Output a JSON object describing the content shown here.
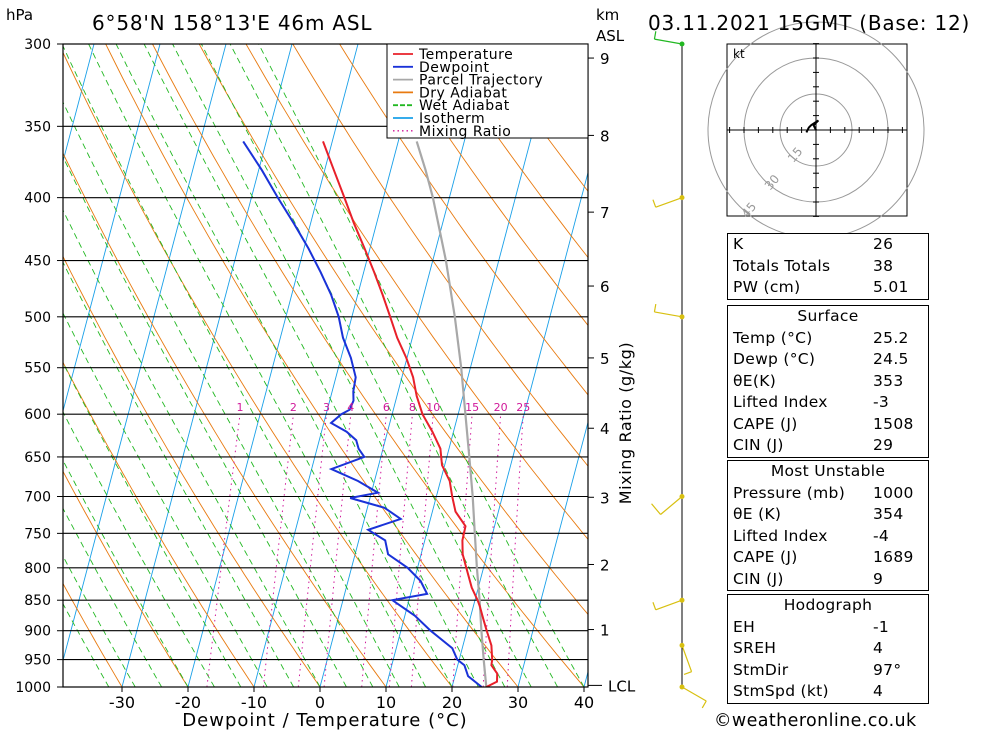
{
  "header": {
    "location": "6°58'N  158°13'E  46m  ASL",
    "date": "03.11.2021  15GMT  (Base: 12)",
    "pressure_unit": "hPa",
    "km_unit": "km",
    "asl_label": "ASL"
  },
  "chart_data": {
    "type": "skew-t log-p",
    "xlabel": "Dewpoint / Temperature (°C)",
    "ylabel_right": "Mixing Ratio (g/kg)",
    "pressure_levels": [
      300,
      350,
      400,
      450,
      500,
      550,
      600,
      650,
      700,
      750,
      800,
      850,
      900,
      950,
      1000
    ],
    "temperature_ticks": [
      -30,
      -20,
      -10,
      0,
      10,
      20,
      30,
      40
    ],
    "xlim": [
      -40,
      40
    ],
    "ylim_hpa": [
      1000,
      300
    ],
    "km_ticks": [
      {
        "km": 1,
        "p": 898
      },
      {
        "km": 2,
        "p": 795
      },
      {
        "km": 3,
        "p": 701
      },
      {
        "km": 4,
        "p": 616
      },
      {
        "km": 5,
        "p": 540
      },
      {
        "km": 6,
        "p": 472
      },
      {
        "km": 7,
        "p": 411
      },
      {
        "km": 8,
        "p": 356
      },
      {
        "km": 9,
        "p": 308
      }
    ],
    "lcl": {
      "label": "LCL",
      "p": 997
    },
    "mixing_ratio_labels": [
      "1",
      "2",
      "3",
      "4",
      "6",
      "8",
      "10",
      "15",
      "20",
      "25"
    ],
    "mixing_ratio_values": [
      1,
      2,
      3,
      4,
      6,
      8,
      10,
      15,
      20,
      25
    ],
    "legend": [
      {
        "name": "Temperature",
        "color": "#e8202a"
      },
      {
        "name": "Dewpoint",
        "color": "#1a32d8"
      },
      {
        "name": "Parcel Trajectory",
        "color": "#a8a8a8"
      },
      {
        "name": "Dry Adiabat",
        "color": "#e87a10"
      },
      {
        "name": "Wet Adiabat",
        "color": "#22b822"
      },
      {
        "name": "Isotherm",
        "color": "#1aa0e8"
      },
      {
        "name": "Mixing Ratio",
        "color": "#d0189a"
      }
    ],
    "series": [
      {
        "name": "Temperature",
        "p": [
          1000,
          990,
          975,
          960,
          950,
          925,
          900,
          880,
          860,
          850,
          830,
          800,
          780,
          760,
          740,
          720,
          700,
          680,
          660,
          640,
          620,
          600,
          580,
          560,
          540,
          520,
          500,
          480,
          460,
          440,
          420,
          400,
          380,
          360
        ],
        "t": [
          25.2,
          26.6,
          26.3,
          25.1,
          25.0,
          24.3,
          23.0,
          22.0,
          21.0,
          20.4,
          19.0,
          17.4,
          16.3,
          15.7,
          15.6,
          13.5,
          12.4,
          11.4,
          9.6,
          8.7,
          6.8,
          4.6,
          3.0,
          1.7,
          -0.1,
          -2.3,
          -4.2,
          -6.2,
          -8.4,
          -10.8,
          -13.4,
          -15.9,
          -18.6,
          -21.4
        ]
      },
      {
        "name": "Dewpoint",
        "p": [
          1000,
          980,
          960,
          950,
          930,
          900,
          875,
          850,
          840,
          820,
          800,
          780,
          760,
          745,
          730,
          715,
          702,
          695,
          680,
          665,
          650,
          640,
          630,
          620,
          610,
          600,
          595,
          585,
          575,
          560,
          540,
          520,
          500,
          480,
          460,
          440,
          420,
          400,
          380,
          360
        ],
        "t": [
          24.5,
          22.0,
          21.0,
          19.7,
          18.5,
          14.5,
          11.5,
          7.5,
          12.5,
          11.0,
          8.5,
          5.0,
          4.0,
          1.0,
          5.5,
          2.6,
          -3.0,
          1.0,
          -2.5,
          -7.0,
          -2.5,
          -3.7,
          -4.4,
          -6.2,
          -8.9,
          -7.7,
          -6.6,
          -6.4,
          -6.8,
          -7.0,
          -8.5,
          -10.5,
          -12.0,
          -14.0,
          -16.5,
          -19.3,
          -22.5,
          -26.0,
          -29.5,
          -33.5
        ]
      },
      {
        "name": "Parcel Trajectory",
        "p": [
          1000,
          950,
          900,
          850,
          800,
          750,
          700,
          650,
          600,
          550,
          500,
          450,
          400,
          380,
          360
        ],
        "t": [
          25.2,
          23.7,
          22.2,
          20.7,
          19.0,
          17.3,
          15.5,
          13.4,
          11.1,
          8.6,
          5.6,
          2.0,
          -2.5,
          -4.7,
          -7.2
        ]
      }
    ],
    "wind_barbs": [
      {
        "p": 1000,
        "dir": 120,
        "kt": 8
      },
      {
        "p": 925,
        "dir": 160,
        "kt": 5
      },
      {
        "p": 850,
        "dir": 250,
        "kt": 5
      },
      {
        "p": 700,
        "dir": 230,
        "kt": 10
      },
      {
        "p": 500,
        "dir": 280,
        "kt": 5
      },
      {
        "p": 400,
        "dir": 250,
        "kt": 5
      },
      {
        "p": 300,
        "dir": 280,
        "kt": 5
      }
    ]
  },
  "hodograph": {
    "unit_label": "kt",
    "ring_labels": [
      "15",
      "30",
      "45"
    ],
    "trace_kt": [
      [
        0,
        0
      ],
      [
        -1,
        2
      ],
      [
        0,
        3
      ],
      [
        1,
        4
      ],
      [
        -2,
        2
      ],
      [
        -3,
        1
      ],
      [
        -4,
        -1
      ]
    ]
  },
  "indices": {
    "general": [
      {
        "label": "K",
        "value": "26"
      },
      {
        "label": "Totals Totals",
        "value": "38"
      },
      {
        "label": "PW (cm)",
        "value": "5.01"
      }
    ],
    "surface": {
      "title": "Surface",
      "rows": [
        {
          "label": "Temp (°C)",
          "value": "25.2"
        },
        {
          "label": "Dewp (°C)",
          "value": "24.5"
        },
        {
          "label": "θE(K)",
          "value": "353"
        },
        {
          "label": "Lifted Index",
          "value": "-3"
        },
        {
          "label": "CAPE (J)",
          "value": "1508"
        },
        {
          "label": "CIN (J)",
          "value": "29"
        }
      ]
    },
    "most_unstable": {
      "title": "Most Unstable",
      "rows": [
        {
          "label": "Pressure (mb)",
          "value": "1000"
        },
        {
          "label": "θE (K)",
          "value": "354"
        },
        {
          "label": "Lifted Index",
          "value": "-4"
        },
        {
          "label": "CAPE (J)",
          "value": "1689"
        },
        {
          "label": "CIN (J)",
          "value": "9"
        }
      ]
    },
    "hodograph": {
      "title": "Hodograph",
      "rows": [
        {
          "label": "EH",
          "value": "-1"
        },
        {
          "label": "SREH",
          "value": "4"
        },
        {
          "label": "StmDir",
          "value": "97°"
        },
        {
          "label": "StmSpd (kt)",
          "value": "4"
        }
      ]
    }
  },
  "footer": {
    "copyright": "©weatheronline.co.uk"
  },
  "colors": {
    "temperature": "#e8202a",
    "dewpoint": "#1a32d8",
    "parcel": "#a8a8a8",
    "dry_adiabat": "#e87a10",
    "wet_adiabat": "#22b822",
    "isotherm": "#1aa0e8",
    "mixing_ratio": "#d0189a",
    "barb": "#d8c010",
    "top_barb": "#22b822"
  }
}
